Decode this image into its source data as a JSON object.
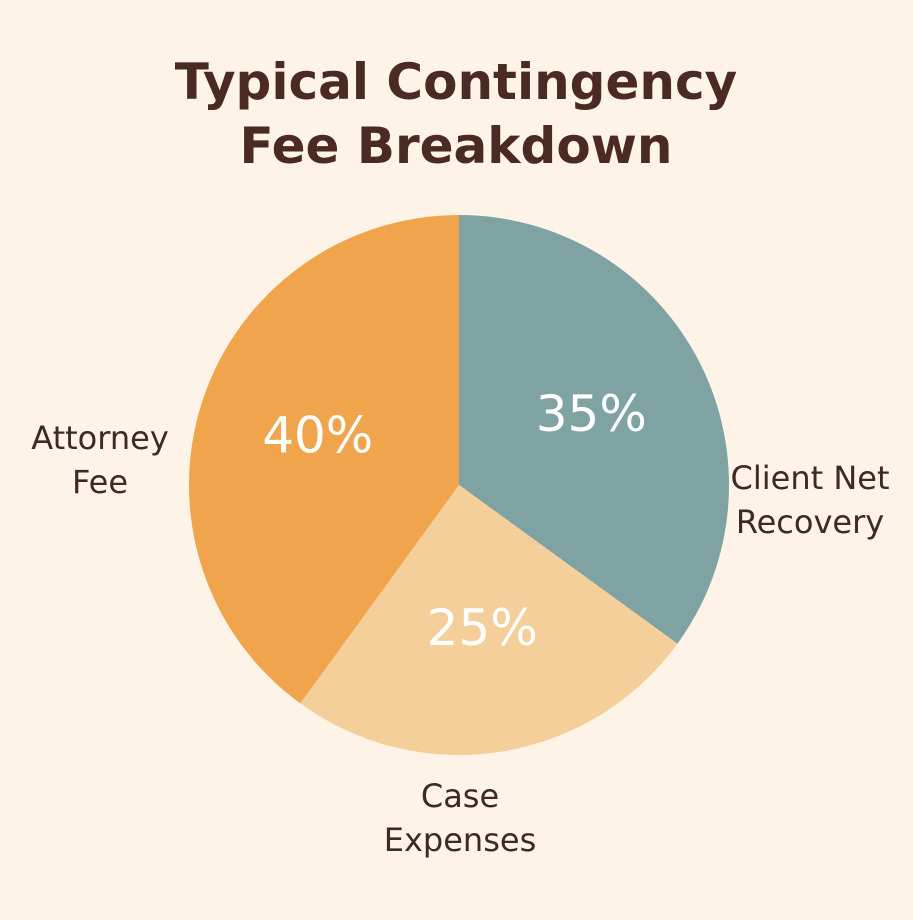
{
  "chart_data": {
    "type": "pie",
    "title": "Typical Contingency Fee Breakdown",
    "categories": [
      "Client Net Recovery",
      "Case Expenses",
      "Attorney Fee"
    ],
    "values": [
      35,
      25,
      40
    ],
    "value_labels": [
      "35%",
      "25%",
      "40%"
    ],
    "colors": [
      "#7fa3a3",
      "#f5cf9a",
      "#f0a44c"
    ]
  }
}
